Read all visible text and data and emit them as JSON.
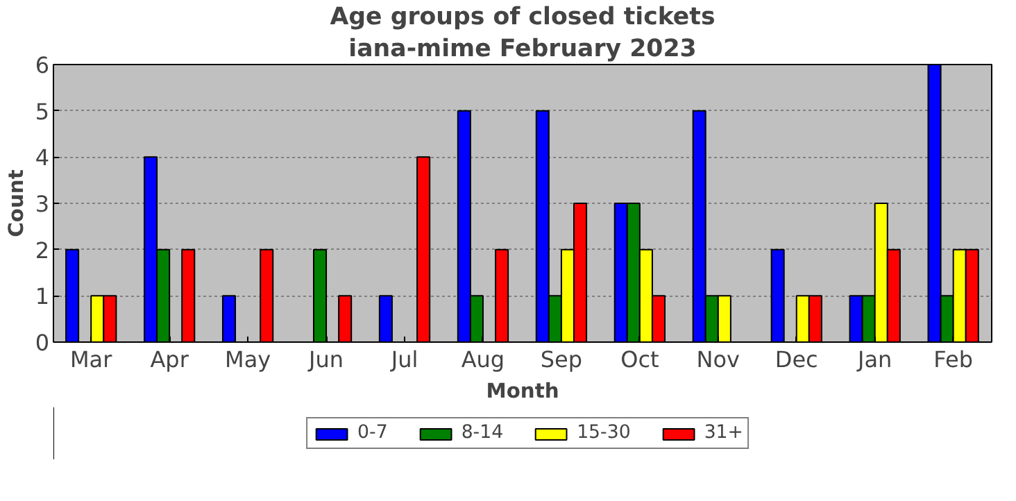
{
  "chart_data": {
    "type": "bar",
    "title": "Age groups of closed tickets",
    "subtitle": "iana-mime February 2023",
    "xlabel": "Month",
    "ylabel": "Count",
    "categories": [
      "Mar",
      "Apr",
      "May",
      "Jun",
      "Jul",
      "Aug",
      "Sep",
      "Oct",
      "Nov",
      "Dec",
      "Jan",
      "Feb"
    ],
    "series": [
      {
        "name": "0-7",
        "color": "#0000ff",
        "values": [
          2,
          4,
          1,
          0,
          1,
          5,
          5,
          3,
          5,
          2,
          1,
          6
        ]
      },
      {
        "name": "8-14",
        "color": "#008000",
        "values": [
          0,
          2,
          0,
          2,
          0,
          1,
          1,
          3,
          1,
          0,
          1,
          1
        ]
      },
      {
        "name": "15-30",
        "color": "#ffff00",
        "values": [
          1,
          0,
          0,
          0,
          0,
          0,
          2,
          2,
          1,
          1,
          3,
          2
        ]
      },
      {
        "name": "31+",
        "color": "#ff0000",
        "values": [
          1,
          2,
          2,
          1,
          4,
          2,
          3,
          1,
          0,
          1,
          2,
          2
        ]
      }
    ],
    "ylim": [
      0,
      6
    ],
    "yticks": [
      0,
      1,
      2,
      3,
      4,
      5,
      6
    ],
    "grid": "y",
    "legend": "bottom"
  }
}
